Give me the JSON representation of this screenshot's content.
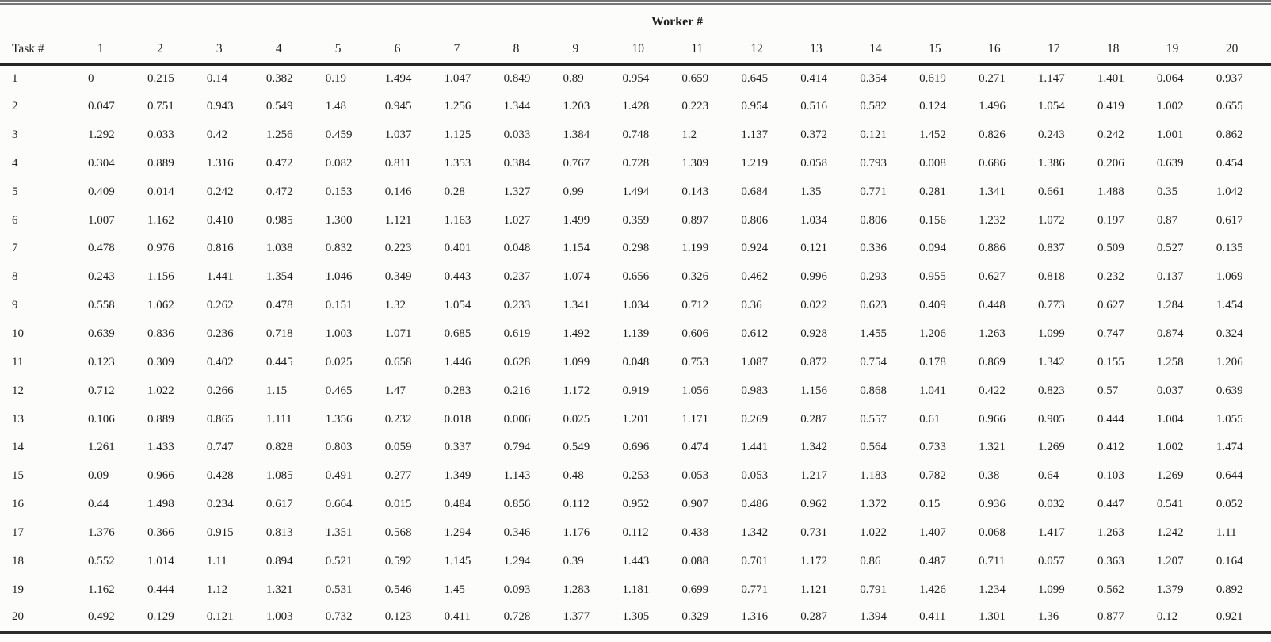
{
  "table": {
    "spanner_label": "Worker #",
    "row_header_label": "Task #",
    "worker_columns": [
      "1",
      "2",
      "3",
      "4",
      "5",
      "6",
      "7",
      "8",
      "9",
      "10",
      "11",
      "12",
      "13",
      "14",
      "15",
      "16",
      "17",
      "18",
      "19",
      "20"
    ],
    "rows": [
      {
        "task": "1",
        "values": [
          "0",
          "0.215",
          "0.14",
          "0.382",
          "0.19",
          "1.494",
          "1.047",
          "0.849",
          "0.89",
          "0.954",
          "0.659",
          "0.645",
          "0.414",
          "0.354",
          "0.619",
          "0.271",
          "1.147",
          "1.401",
          "0.064",
          "0.937"
        ]
      },
      {
        "task": "2",
        "values": [
          "0.047",
          "0.751",
          "0.943",
          "0.549",
          "1.48",
          "0.945",
          "1.256",
          "1.344",
          "1.203",
          "1.428",
          "0.223",
          "0.954",
          "0.516",
          "0.582",
          "0.124",
          "1.496",
          "1.054",
          "0.419",
          "1.002",
          "0.655"
        ]
      },
      {
        "task": "3",
        "values": [
          "1.292",
          "0.033",
          "0.42",
          "1.256",
          "0.459",
          "1.037",
          "1.125",
          "0.033",
          "1.384",
          "0.748",
          "1.2",
          "1.137",
          "0.372",
          "0.121",
          "1.452",
          "0.826",
          "0.243",
          "0.242",
          "1.001",
          "0.862"
        ]
      },
      {
        "task": "4",
        "values": [
          "0.304",
          "0.889",
          "1.316",
          "0.472",
          "0.082",
          "0.811",
          "1.353",
          "0.384",
          "0.767",
          "0.728",
          "1.309",
          "1.219",
          "0.058",
          "0.793",
          "0.008",
          "0.686",
          "1.386",
          "0.206",
          "0.639",
          "0.454"
        ]
      },
      {
        "task": "5",
        "values": [
          "0.409",
          "0.014",
          "0.242",
          "0.472",
          "0.153",
          "0.146",
          "0.28",
          "1.327",
          "0.99",
          "1.494",
          "0.143",
          "0.684",
          "1.35",
          "0.771",
          "0.281",
          "1.341",
          "0.661",
          "1.488",
          "0.35",
          "1.042"
        ]
      },
      {
        "task": "6",
        "values": [
          "1.007",
          "1.162",
          "0.410",
          "0.985",
          "1.300",
          "1.121",
          "1.163",
          "1.027",
          "1.499",
          "0.359",
          "0.897",
          "0.806",
          "1.034",
          "0.806",
          "0.156",
          "1.232",
          "1.072",
          "0.197",
          "0.87",
          "0.617"
        ]
      },
      {
        "task": "7",
        "values": [
          "0.478",
          "0.976",
          "0.816",
          "1.038",
          "0.832",
          "0.223",
          "0.401",
          "0.048",
          "1.154",
          "0.298",
          "1.199",
          "0.924",
          "0.121",
          "0.336",
          "0.094",
          "0.886",
          "0.837",
          "0.509",
          "0.527",
          "0.135"
        ]
      },
      {
        "task": "8",
        "values": [
          "0.243",
          "1.156",
          "1.441",
          "1.354",
          "1.046",
          "0.349",
          "0.443",
          "0.237",
          "1.074",
          "0.656",
          "0.326",
          "0.462",
          "0.996",
          "0.293",
          "0.955",
          "0.627",
          "0.818",
          "0.232",
          "0.137",
          "1.069"
        ]
      },
      {
        "task": "9",
        "values": [
          "0.558",
          "1.062",
          "0.262",
          "0.478",
          "0.151",
          "1.32",
          "1.054",
          "0.233",
          "1.341",
          "1.034",
          "0.712",
          "0.36",
          "0.022",
          "0.623",
          "0.409",
          "0.448",
          "0.773",
          "0.627",
          "1.284",
          "1.454"
        ]
      },
      {
        "task": "10",
        "values": [
          "0.639",
          "0.836",
          "0.236",
          "0.718",
          "1.003",
          "1.071",
          "0.685",
          "0.619",
          "1.492",
          "1.139",
          "0.606",
          "0.612",
          "0.928",
          "1.455",
          "1.206",
          "1.263",
          "1.099",
          "0.747",
          "0.874",
          "0.324"
        ]
      },
      {
        "task": "11",
        "values": [
          "0.123",
          "0.309",
          "0.402",
          "0.445",
          "0.025",
          "0.658",
          "1.446",
          "0.628",
          "1.099",
          "0.048",
          "0.753",
          "1.087",
          "0.872",
          "0.754",
          "0.178",
          "0.869",
          "1.342",
          "0.155",
          "1.258",
          "1.206"
        ]
      },
      {
        "task": "12",
        "values": [
          "0.712",
          "1.022",
          "0.266",
          "1.15",
          "0.465",
          "1.47",
          "0.283",
          "0.216",
          "1.172",
          "0.919",
          "1.056",
          "0.983",
          "1.156",
          "0.868",
          "1.041",
          "0.422",
          "0.823",
          "0.57",
          "0.037",
          "0.639"
        ]
      },
      {
        "task": "13",
        "values": [
          "0.106",
          "0.889",
          "0.865",
          "1.111",
          "1.356",
          "0.232",
          "0.018",
          "0.006",
          "0.025",
          "1.201",
          "1.171",
          "0.269",
          "0.287",
          "0.557",
          "0.61",
          "0.966",
          "0.905",
          "0.444",
          "1.004",
          "1.055"
        ]
      },
      {
        "task": "14",
        "values": [
          "1.261",
          "1.433",
          "0.747",
          "0.828",
          "0.803",
          "0.059",
          "0.337",
          "0.794",
          "0.549",
          "0.696",
          "0.474",
          "1.441",
          "1.342",
          "0.564",
          "0.733",
          "1.321",
          "1.269",
          "0.412",
          "1.002",
          "1.474"
        ]
      },
      {
        "task": "15",
        "values": [
          "0.09",
          "0.966",
          "0.428",
          "1.085",
          "0.491",
          "0.277",
          "1.349",
          "1.143",
          "0.48",
          "0.253",
          "0.053",
          "0.053",
          "1.217",
          "1.183",
          "0.782",
          "0.38",
          "0.64",
          "0.103",
          "1.269",
          "0.644"
        ]
      },
      {
        "task": "16",
        "values": [
          "0.44",
          "1.498",
          "0.234",
          "0.617",
          "0.664",
          "0.015",
          "0.484",
          "0.856",
          "0.112",
          "0.952",
          "0.907",
          "0.486",
          "0.962",
          "1.372",
          "0.15",
          "0.936",
          "0.032",
          "0.447",
          "0.541",
          "0.052"
        ]
      },
      {
        "task": "17",
        "values": [
          "1.376",
          "0.366",
          "0.915",
          "0.813",
          "1.351",
          "0.568",
          "1.294",
          "0.346",
          "1.176",
          "0.112",
          "0.438",
          "1.342",
          "0.731",
          "1.022",
          "1.407",
          "0.068",
          "1.417",
          "1.263",
          "1.242",
          "1.11"
        ]
      },
      {
        "task": "18",
        "values": [
          "0.552",
          "1.014",
          "1.11",
          "0.894",
          "0.521",
          "0.592",
          "1.145",
          "1.294",
          "0.39",
          "1.443",
          "0.088",
          "0.701",
          "1.172",
          "0.86",
          "0.487",
          "0.711",
          "0.057",
          "0.363",
          "1.207",
          "0.164"
        ]
      },
      {
        "task": "19",
        "values": [
          "1.162",
          "0.444",
          "1.12",
          "1.321",
          "0.531",
          "0.546",
          "1.45",
          "0.093",
          "1.283",
          "1.181",
          "0.699",
          "0.771",
          "1.121",
          "0.791",
          "1.426",
          "1.234",
          "1.099",
          "0.562",
          "1.379",
          "0.892"
        ]
      },
      {
        "task": "20",
        "values": [
          "0.492",
          "0.129",
          "0.121",
          "1.003",
          "0.732",
          "0.123",
          "0.411",
          "0.728",
          "1.377",
          "1.305",
          "0.329",
          "1.316",
          "0.287",
          "1.394",
          "0.411",
          "1.301",
          "1.36",
          "0.877",
          "0.12",
          "0.921"
        ]
      }
    ]
  }
}
